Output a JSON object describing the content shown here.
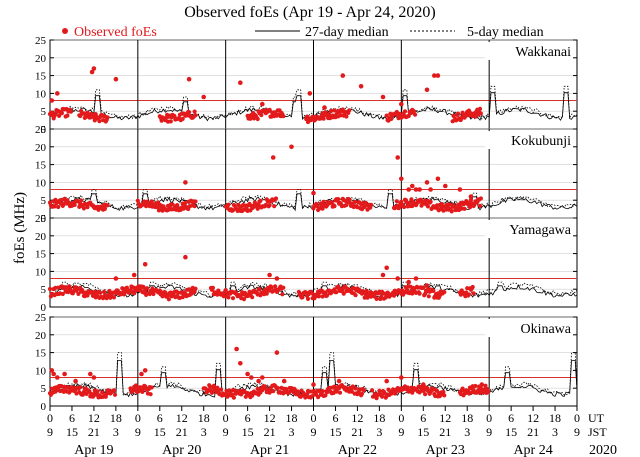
{
  "chart_data": {
    "type": "scatter",
    "title": "Observed foEs (Apr 19 - Apr 24, 2020)",
    "ylabel": "foEs (MHz)",
    "xlabel": "",
    "ylim": [
      0,
      25
    ],
    "y_ticks": [
      0,
      5,
      10,
      15,
      20,
      25
    ],
    "reference_line_mhz": 8,
    "legend": {
      "observed": "Observed foEs",
      "median27": "27-day median",
      "median5": "5-day median"
    },
    "time_axis": {
      "days": 6,
      "hours_per_day": 24,
      "ut_row_label": "UT",
      "jst_row_label": "JST",
      "year_label": "2020",
      "ut_ticks": [
        "0",
        "6",
        "12",
        "18",
        "0",
        "6",
        "12",
        "18",
        "0",
        "6",
        "12",
        "18",
        "0",
        "6",
        "12",
        "18",
        "0",
        "6",
        "12",
        "18",
        "0",
        "6",
        "12",
        "18",
        "0"
      ],
      "jst_ticks": [
        "9",
        "15",
        "21",
        "3",
        "9",
        "15",
        "21",
        "3",
        "9",
        "15",
        "21",
        "3",
        "9",
        "15",
        "21",
        "3",
        "9",
        "15",
        "21",
        "3",
        "9",
        "15",
        "21",
        "3",
        "9"
      ],
      "day_labels": [
        "Apr 19",
        "Apr 20",
        "Apr 21",
        "Apr 22",
        "Apr 23",
        "Apr 24"
      ]
    },
    "series": [
      {
        "name": "Wakkanai",
        "base": 3.8,
        "median27_level": 4.2,
        "median5_level": 4.6,
        "spikes": [
          {
            "day_hour": 13,
            "height": 11
          },
          {
            "day_hour": 37,
            "height": 9
          },
          {
            "day_hour": 67,
            "height": 9
          },
          {
            "day_hour": 68,
            "height": 11
          },
          {
            "day_hour": 97,
            "height": 11
          },
          {
            "day_hour": 121,
            "height": 12
          },
          {
            "day_hour": 141,
            "height": 12
          }
        ],
        "observed_outliers": [
          {
            "day_hour": 0.5,
            "value": 8
          },
          {
            "day_hour": 2,
            "value": 10
          },
          {
            "day_hour": 11.5,
            "value": 16
          },
          {
            "day_hour": 12,
            "value": 17
          },
          {
            "day_hour": 18,
            "value": 14
          },
          {
            "day_hour": 38,
            "value": 14
          },
          {
            "day_hour": 42,
            "value": 9
          },
          {
            "day_hour": 52,
            "value": 13
          },
          {
            "day_hour": 58,
            "value": 7
          },
          {
            "day_hour": 71,
            "value": 10
          },
          {
            "day_hour": 75,
            "value": 6
          },
          {
            "day_hour": 80,
            "value": 15
          },
          {
            "day_hour": 85,
            "value": 12
          },
          {
            "day_hour": 91,
            "value": 9
          },
          {
            "day_hour": 96,
            "value": 7
          },
          {
            "day_hour": 105,
            "value": 15
          },
          {
            "day_hour": 106,
            "value": 15
          },
          {
            "day_hour": 103,
            "value": 11
          }
        ],
        "observed_active_windows": [
          [
            0,
            6
          ],
          [
            8,
            16
          ],
          [
            30,
            40
          ],
          [
            54,
            64
          ],
          [
            70,
            82
          ],
          [
            92,
            100
          ],
          [
            110,
            118
          ]
        ]
      },
      {
        "name": "Kokubunji",
        "base": 3.6,
        "median27_level": 4.0,
        "median5_level": 4.5,
        "spikes": [
          {
            "day_hour": 12,
            "height": 8
          },
          {
            "day_hour": 26,
            "height": 8
          },
          {
            "day_hour": 68,
            "height": 8
          },
          {
            "day_hour": 93,
            "height": 8
          },
          {
            "day_hour": 116,
            "height": 7
          }
        ],
        "observed_outliers": [
          {
            "day_hour": 37,
            "value": 10
          },
          {
            "day_hour": 61,
            "value": 17
          },
          {
            "day_hour": 66,
            "value": 20
          },
          {
            "day_hour": 72,
            "value": 7
          },
          {
            "day_hour": 95,
            "value": 17
          },
          {
            "day_hour": 96,
            "value": 11
          },
          {
            "day_hour": 98,
            "value": 8
          },
          {
            "day_hour": 99,
            "value": 9
          },
          {
            "day_hour": 100,
            "value": 8
          },
          {
            "day_hour": 101,
            "value": 8
          },
          {
            "day_hour": 103,
            "value": 10
          },
          {
            "day_hour": 104,
            "value": 8
          },
          {
            "day_hour": 106,
            "value": 11
          },
          {
            "day_hour": 108,
            "value": 9
          },
          {
            "day_hour": 112,
            "value": 8
          },
          {
            "day_hour": 115,
            "value": 6
          }
        ],
        "observed_active_windows": [
          [
            0,
            16
          ],
          [
            24,
            40
          ],
          [
            48,
            62
          ],
          [
            72,
            88
          ],
          [
            94,
            118
          ]
        ]
      },
      {
        "name": "Yamagawa",
        "base": 4.0,
        "median27_level": 4.4,
        "median5_level": 5.0,
        "spikes": [
          {
            "day_hour": 4,
            "height": 7
          },
          {
            "day_hour": 28,
            "height": 7
          },
          {
            "day_hour": 50,
            "height": 7
          },
          {
            "day_hour": 75,
            "height": 7
          },
          {
            "day_hour": 97,
            "height": 7
          },
          {
            "day_hour": 123,
            "height": 7
          }
        ],
        "observed_outliers": [
          {
            "day_hour": 18,
            "value": 8
          },
          {
            "day_hour": 23,
            "value": 9
          },
          {
            "day_hour": 26,
            "value": 12
          },
          {
            "day_hour": 37,
            "value": 14
          },
          {
            "day_hour": 60,
            "value": 9
          },
          {
            "day_hour": 62,
            "value": 8
          },
          {
            "day_hour": 91,
            "value": 9
          },
          {
            "day_hour": 92,
            "value": 11
          },
          {
            "day_hour": 95,
            "value": 8
          },
          {
            "day_hour": 98,
            "value": 7
          },
          {
            "day_hour": 100,
            "value": 8
          },
          {
            "day_hour": 103,
            "value": 6
          }
        ],
        "observed_active_windows": [
          [
            0,
            40
          ],
          [
            44,
            64
          ],
          [
            68,
            108
          ],
          [
            112,
            116
          ]
        ]
      },
      {
        "name": "Okinawa",
        "base": 4.0,
        "median27_level": 4.4,
        "median5_level": 4.9,
        "spikes": [
          {
            "day_hour": 19,
            "height": 15
          },
          {
            "day_hour": 31,
            "height": 11
          },
          {
            "day_hour": 46,
            "height": 12
          },
          {
            "day_hour": 75,
            "height": 11
          },
          {
            "day_hour": 77,
            "height": 15
          },
          {
            "day_hour": 100,
            "height": 12
          },
          {
            "day_hour": 125,
            "height": 11
          },
          {
            "day_hour": 143,
            "height": 15
          }
        ],
        "observed_outliers": [
          {
            "day_hour": 0.5,
            "value": 10
          },
          {
            "day_hour": 1,
            "value": 9
          },
          {
            "day_hour": 2,
            "value": 8
          },
          {
            "day_hour": 4,
            "value": 9
          },
          {
            "day_hour": 7,
            "value": 7
          },
          {
            "day_hour": 11,
            "value": 9
          },
          {
            "day_hour": 12,
            "value": 8
          },
          {
            "day_hour": 25,
            "value": 9
          },
          {
            "day_hour": 26,
            "value": 10
          },
          {
            "day_hour": 51,
            "value": 16
          },
          {
            "day_hour": 52,
            "value": 12
          },
          {
            "day_hour": 54,
            "value": 9
          },
          {
            "day_hour": 55,
            "value": 8
          },
          {
            "day_hour": 57,
            "value": 7
          },
          {
            "day_hour": 58,
            "value": 8
          },
          {
            "day_hour": 62,
            "value": 15
          },
          {
            "day_hour": 64,
            "value": 7
          },
          {
            "day_hour": 72,
            "value": 6
          },
          {
            "day_hour": 79,
            "value": 7
          },
          {
            "day_hour": 92,
            "value": 7
          },
          {
            "day_hour": 96,
            "value": 8
          },
          {
            "day_hour": 102,
            "value": 6
          },
          {
            "day_hour": 118,
            "value": 6
          }
        ],
        "observed_active_windows": [
          [
            0,
            18
          ],
          [
            22,
            28
          ],
          [
            42,
            70
          ],
          [
            70,
            86
          ],
          [
            88,
            108
          ],
          [
            112,
            120
          ]
        ]
      }
    ]
  },
  "colors": {
    "observed": "#e31a1c",
    "reference_line": "#d9302a",
    "median": "#000000",
    "axis": "#000000"
  }
}
